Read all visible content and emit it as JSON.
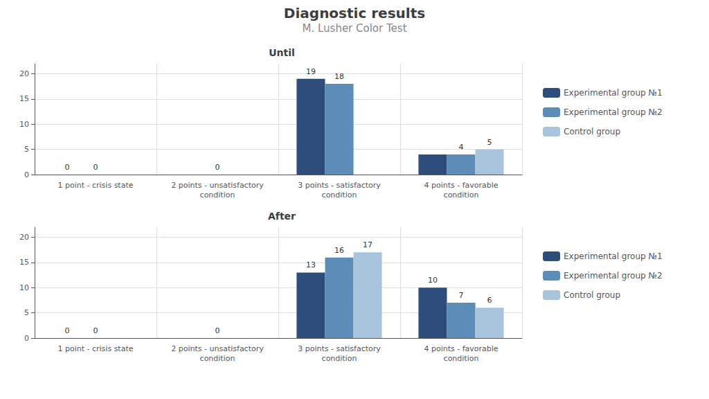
{
  "title": "Diagnostic results",
  "subtitle": "M. Lusher Color Test",
  "chart_data": [
    {
      "type": "bar",
      "title": "Until",
      "categories": [
        "1 point - crisis state",
        "2 points - unsatisfactory\ncondition",
        "3 points - satisfactory\ncondition",
        "4 points - favorable\ncondition"
      ],
      "series": [
        {
          "name": "Experimental group №1",
          "color": "#2E4D7B",
          "values": [
            0,
            0,
            19,
            4
          ],
          "value_labels": [
            "0",
            null,
            "19",
            null
          ]
        },
        {
          "name": "Experimental group №2",
          "color": "#5B8DB8",
          "values": [
            0,
            0,
            18,
            4
          ],
          "value_labels": [
            "0",
            "0",
            "18",
            "4"
          ]
        },
        {
          "name": "Control group",
          "color": "#A8C4DC",
          "values": [
            0,
            0,
            0,
            5
          ],
          "value_labels": [
            null,
            null,
            null,
            "5"
          ]
        }
      ],
      "ylim": [
        0,
        22
      ],
      "yticks": [
        0,
        5,
        10,
        15,
        20
      ],
      "grid": true,
      "legend": "right",
      "data_labels": true
    },
    {
      "type": "bar",
      "title": "After",
      "categories": [
        "1 point - crisis state",
        "2 points - unsatisfactory\ncondition",
        "3 points - satisfactory\ncondition",
        "4 points - favorable\ncondition"
      ],
      "series": [
        {
          "name": "Experimental group №1",
          "color": "#2E4D7B",
          "values": [
            0,
            0,
            13,
            10
          ],
          "value_labels": [
            "0",
            null,
            "13",
            "10"
          ]
        },
        {
          "name": "Experimental group №2",
          "color": "#5B8DB8",
          "values": [
            0,
            0,
            16,
            7
          ],
          "value_labels": [
            "0",
            "0",
            "16",
            "7"
          ]
        },
        {
          "name": "Control group",
          "color": "#A8C4DC",
          "values": [
            0,
            0,
            17,
            6
          ],
          "value_labels": [
            null,
            null,
            "17",
            "6"
          ]
        }
      ],
      "ylim": [
        0,
        22
      ],
      "yticks": [
        0,
        5,
        10,
        15,
        20
      ],
      "grid": true,
      "legend": "right",
      "data_labels": true
    }
  ]
}
